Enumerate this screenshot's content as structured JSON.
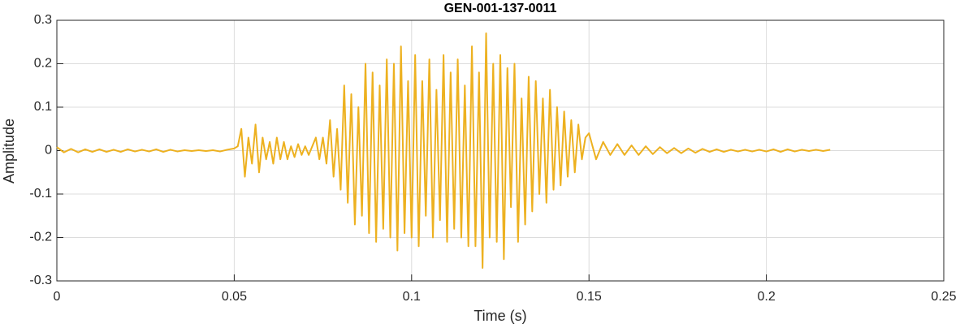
{
  "chart_data": {
    "type": "line",
    "title": "GEN-001-137-0011",
    "x_label": "Time (s)",
    "y_label": "Amplitude",
    "x": [
      0,
      0.002,
      0.004,
      0.006,
      0.008,
      0.01,
      0.012,
      0.014,
      0.016,
      0.018,
      0.02,
      0.022,
      0.024,
      0.026,
      0.028,
      0.03,
      0.032,
      0.034,
      0.036,
      0.038,
      0.04,
      0.042,
      0.044,
      0.046,
      0.048,
      0.05,
      0.051,
      0.052,
      0.053,
      0.054,
      0.055,
      0.056,
      0.057,
      0.058,
      0.059,
      0.06,
      0.061,
      0.062,
      0.063,
      0.064,
      0.065,
      0.066,
      0.067,
      0.068,
      0.069,
      0.07,
      0.071,
      0.072,
      0.073,
      0.074,
      0.075,
      0.076,
      0.077,
      0.078,
      0.079,
      0.08,
      0.081,
      0.082,
      0.083,
      0.084,
      0.085,
      0.086,
      0.087,
      0.088,
      0.089,
      0.09,
      0.091,
      0.092,
      0.093,
      0.094,
      0.095,
      0.096,
      0.097,
      0.098,
      0.099,
      0.1,
      0.101,
      0.102,
      0.103,
      0.104,
      0.105,
      0.106,
      0.107,
      0.108,
      0.109,
      0.11,
      0.111,
      0.112,
      0.113,
      0.114,
      0.115,
      0.116,
      0.117,
      0.118,
      0.119,
      0.12,
      0.121,
      0.122,
      0.123,
      0.124,
      0.125,
      0.126,
      0.127,
      0.128,
      0.129,
      0.13,
      0.131,
      0.132,
      0.133,
      0.134,
      0.135,
      0.136,
      0.137,
      0.138,
      0.139,
      0.14,
      0.141,
      0.142,
      0.143,
      0.144,
      0.145,
      0.146,
      0.147,
      0.148,
      0.149,
      0.15,
      0.152,
      0.154,
      0.156,
      0.158,
      0.16,
      0.162,
      0.164,
      0.166,
      0.168,
      0.17,
      0.172,
      0.174,
      0.176,
      0.178,
      0.18,
      0.182,
      0.184,
      0.186,
      0.188,
      0.19,
      0.192,
      0.194,
      0.196,
      0.198,
      0.2,
      0.202,
      0.204,
      0.206,
      0.208,
      0.21,
      0.212,
      0.214,
      0.216,
      0.218
    ],
    "series": [
      {
        "name": "Amplitude",
        "color": "#EDB120",
        "values": [
          0.008,
          -0.004,
          0.004,
          -0.004,
          0.003,
          -0.003,
          0.003,
          -0.003,
          0.002,
          -0.003,
          0.003,
          -0.002,
          0.002,
          -0.002,
          0.003,
          -0.003,
          0.002,
          -0.002,
          0.001,
          -0.001,
          0.001,
          -0.001,
          0.001,
          -0.002,
          0.002,
          0.005,
          0.01,
          0.05,
          -0.06,
          0.03,
          -0.03,
          0.06,
          -0.05,
          0.03,
          -0.02,
          0.02,
          -0.03,
          0.03,
          -0.02,
          0.02,
          -0.02,
          0.01,
          -0.015,
          0.015,
          -0.01,
          0.01,
          -0.01,
          0.01,
          0.03,
          -0.02,
          0.03,
          -0.03,
          0.07,
          -0.06,
          0.05,
          -0.09,
          0.15,
          -0.12,
          0.13,
          -0.17,
          0.1,
          -0.15,
          0.2,
          -0.19,
          0.18,
          -0.21,
          0.15,
          -0.18,
          0.21,
          -0.2,
          0.2,
          -0.23,
          0.24,
          -0.19,
          0.16,
          -0.2,
          0.22,
          -0.22,
          0.16,
          -0.15,
          0.21,
          -0.2,
          0.14,
          -0.16,
          0.22,
          -0.21,
          0.18,
          -0.18,
          0.21,
          -0.2,
          0.15,
          -0.22,
          0.24,
          -0.22,
          0.18,
          -0.27,
          0.27,
          -0.2,
          0.2,
          -0.21,
          0.22,
          -0.25,
          0.19,
          -0.13,
          0.2,
          -0.21,
          0.12,
          -0.17,
          0.17,
          -0.14,
          0.16,
          -0.1,
          0.12,
          -0.12,
          0.14,
          -0.09,
          0.1,
          -0.08,
          0.09,
          -0.06,
          0.07,
          -0.05,
          0.06,
          -0.02,
          0.03,
          0.04,
          -0.02,
          0.02,
          -0.01,
          0.015,
          -0.01,
          0.012,
          -0.01,
          0.01,
          -0.008,
          0.008,
          -0.006,
          0.006,
          -0.006,
          0.005,
          -0.005,
          0.004,
          -0.003,
          0.003,
          -0.003,
          0.002,
          -0.002,
          0.002,
          -0.002,
          0.002,
          -0.002,
          0.003,
          -0.003,
          0.003,
          -0.002,
          0.002,
          -0.001,
          0.002,
          -0.001,
          0.002
        ]
      }
    ],
    "xlim": [
      0,
      0.25
    ],
    "xticks": [
      0,
      0.05,
      0.1,
      0.15,
      0.2,
      0.25
    ],
    "ylim": [
      -0.3,
      0.3
    ],
    "yticks": [
      -0.3,
      -0.2,
      -0.1,
      0,
      0.1,
      0.2,
      0.3
    ],
    "grid": true
  }
}
